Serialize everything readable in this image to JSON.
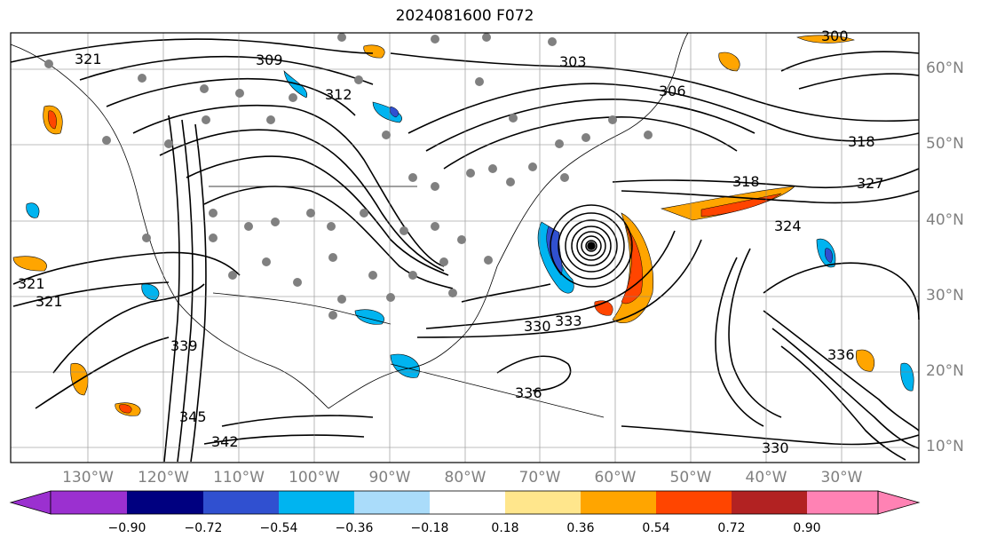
{
  "title": "2024081600 F072",
  "lat_labels": [
    "60°N",
    "50°N",
    "40°N",
    "30°N",
    "20°N",
    "10°N"
  ],
  "lon_labels": [
    "130°W",
    "120°W",
    "110°W",
    "100°W",
    "90°W",
    "80°W",
    "70°W",
    "60°W",
    "50°W",
    "40°W",
    "30°W"
  ],
  "colorbar": {
    "ticks": [
      "−0.90",
      "−0.72",
      "−0.54",
      "−0.36",
      "−0.18",
      "0.18",
      "0.36",
      "0.54",
      "0.72",
      "0.90"
    ],
    "colors": [
      "#9b30d0",
      "#000080",
      "#3050d0",
      "#00b4f0",
      "#aadcfa",
      "#ffffff",
      "#ffe68c",
      "#ffa500",
      "#ff4500",
      "#b22222",
      "#ff82b4"
    ]
  },
  "contour_labels": [
    {
      "text": "321"
    },
    {
      "text": "309"
    },
    {
      "text": "303"
    },
    {
      "text": "300"
    },
    {
      "text": "306"
    },
    {
      "text": "312"
    },
    {
      "text": "318"
    },
    {
      "text": "321"
    },
    {
      "text": "324"
    },
    {
      "text": "327"
    },
    {
      "text": "330"
    },
    {
      "text": "333"
    },
    {
      "text": "336"
    },
    {
      "text": "339"
    },
    {
      "text": "342"
    },
    {
      "text": "345"
    },
    {
      "text": "318"
    },
    {
      "text": "321"
    },
    {
      "text": "336"
    },
    {
      "text": "330"
    }
  ],
  "colors": {
    "contour": "#000000",
    "gridline": "#808080",
    "observation_dot": "#808080",
    "warm_fill": "#ffa500",
    "warm_core": "#ff4500",
    "cool_fill": "#00b4f0",
    "cool_core": "#3050d0"
  }
}
